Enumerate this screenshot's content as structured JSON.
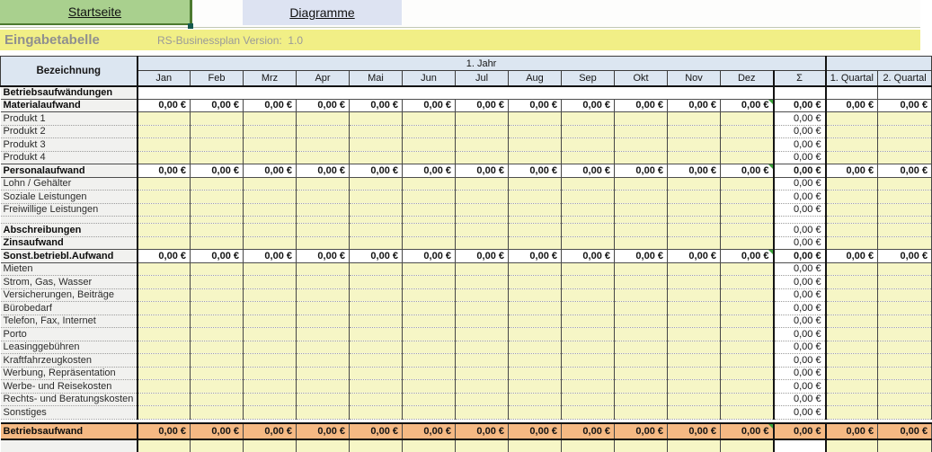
{
  "tabs": {
    "startseite": "Startseite",
    "diagramme": "Diagramme"
  },
  "titlebar": {
    "title": "Eingabetabelle",
    "version": "RS-Businessplan Version:  1.0"
  },
  "table": {
    "corner_header": "Bezeichnung",
    "year_header": "1. Jahr",
    "months": [
      "Jan",
      "Feb",
      "Mrz",
      "Apr",
      "Mai",
      "Jun",
      "Jul",
      "Aug",
      "Sep",
      "Okt",
      "Nov",
      "Dez"
    ],
    "sum_header": "Σ",
    "quartal_headers": [
      "1. Quartal",
      "2. Quartal"
    ],
    "rows": [
      {
        "label": "Betriebsaufwändungen",
        "type": "group",
        "monthly": "",
        "sigma": "",
        "quartal": "",
        "marker": false
      },
      {
        "label": "Materialaufwand",
        "type": "section",
        "monthly": "0,00 €",
        "sigma": "0,00 €",
        "quartal": "0,00 €",
        "marker": true
      },
      {
        "label": "Produkt 1",
        "type": "input",
        "monthly": "",
        "sigma": "0,00 €",
        "quartal": "",
        "marker": false
      },
      {
        "label": "Produkt 2",
        "type": "input",
        "monthly": "",
        "sigma": "0,00 €",
        "quartal": "",
        "marker": false
      },
      {
        "label": "Produkt 3",
        "type": "input",
        "monthly": "",
        "sigma": "0,00 €",
        "quartal": "",
        "marker": false
      },
      {
        "label": "Produkt 4",
        "type": "input",
        "monthly": "",
        "sigma": "0,00 €",
        "quartal": "",
        "marker": false
      },
      {
        "label": "Personalaufwand",
        "type": "section",
        "monthly": "0,00 €",
        "sigma": "0,00 €",
        "quartal": "0,00 €",
        "marker": true
      },
      {
        "label": "Lohn / Gehälter",
        "type": "input",
        "monthly": "",
        "sigma": "0,00 €",
        "quartal": "",
        "marker": false
      },
      {
        "label": "Soziale Leistungen",
        "type": "input",
        "monthly": "",
        "sigma": "0,00 €",
        "quartal": "",
        "marker": false
      },
      {
        "label": "Freiwillige Leistungen",
        "type": "input",
        "monthly": "",
        "sigma": "0,00 €",
        "quartal": "",
        "marker": false
      },
      {
        "label": "",
        "type": "sep",
        "monthly": "",
        "sigma": "",
        "quartal": "",
        "marker": false
      },
      {
        "label": "Abschreibungen",
        "type": "input_bold",
        "monthly": "",
        "sigma": "0,00 €",
        "quartal": "",
        "marker": false
      },
      {
        "label": "Zinsaufwand",
        "type": "input_bold",
        "monthly": "",
        "sigma": "0,00 €",
        "quartal": "",
        "marker": false
      },
      {
        "label": "Sonst.betriebl.Aufwand",
        "type": "section",
        "monthly": "0,00 €",
        "sigma": "0,00 €",
        "quartal": "0,00 €",
        "marker": true
      },
      {
        "label": "Mieten",
        "type": "input",
        "monthly": "",
        "sigma": "0,00 €",
        "quartal": "",
        "marker": false
      },
      {
        "label": "Strom, Gas, Wasser",
        "type": "input",
        "monthly": "",
        "sigma": "0,00 €",
        "quartal": "",
        "marker": false
      },
      {
        "label": "Versicherungen, Beiträge",
        "type": "input",
        "monthly": "",
        "sigma": "0,00 €",
        "quartal": "",
        "marker": false
      },
      {
        "label": "Bürobedarf",
        "type": "input",
        "monthly": "",
        "sigma": "0,00 €",
        "quartal": "",
        "marker": false
      },
      {
        "label": "Telefon, Fax, Internet",
        "type": "input",
        "monthly": "",
        "sigma": "0,00 €",
        "quartal": "",
        "marker": false
      },
      {
        "label": "Porto",
        "type": "input",
        "monthly": "",
        "sigma": "0,00 €",
        "quartal": "",
        "marker": false
      },
      {
        "label": "Leasinggebühren",
        "type": "input",
        "monthly": "",
        "sigma": "0,00 €",
        "quartal": "",
        "marker": false
      },
      {
        "label": "Kraftfahrzeugkosten",
        "type": "input",
        "monthly": "",
        "sigma": "0,00 €",
        "quartal": "",
        "marker": false
      },
      {
        "label": "Werbung, Repräsentation",
        "type": "input",
        "monthly": "",
        "sigma": "0,00 €",
        "quartal": "",
        "marker": false
      },
      {
        "label": "Werbe- und Reisekosten",
        "type": "input",
        "monthly": "",
        "sigma": "0,00 €",
        "quartal": "",
        "marker": false
      },
      {
        "label": "Rechts- und Beratungskosten",
        "type": "input",
        "monthly": "",
        "sigma": "0,00 €",
        "quartal": "",
        "marker": false
      },
      {
        "label": "Sonstiges",
        "type": "input",
        "monthly": "",
        "sigma": "0,00 €",
        "quartal": "",
        "marker": false
      },
      {
        "label": "",
        "type": "gap",
        "monthly": "",
        "sigma": "",
        "quartal": "",
        "marker": false
      },
      {
        "label": "Betriebsaufwand",
        "type": "total",
        "monthly": "0,00 €",
        "sigma": "0,00 €",
        "quartal": "0,00 €",
        "marker": true
      },
      {
        "label": "",
        "type": "partial",
        "monthly": "",
        "sigma": "",
        "quartal": "",
        "marker": false
      }
    ]
  },
  "colors": {
    "active_tab_green": "#a9d08e",
    "tab_border_green": "#4c7a2f",
    "inactive_tab_blue": "#dde3f2",
    "title_band_yellow": "#f1ef86",
    "header_blue": "#dce6f1",
    "input_cell_yellow": "#f6f6c6",
    "total_row_orange": "#f5b983",
    "comment_marker_green": "#3aa23a"
  }
}
